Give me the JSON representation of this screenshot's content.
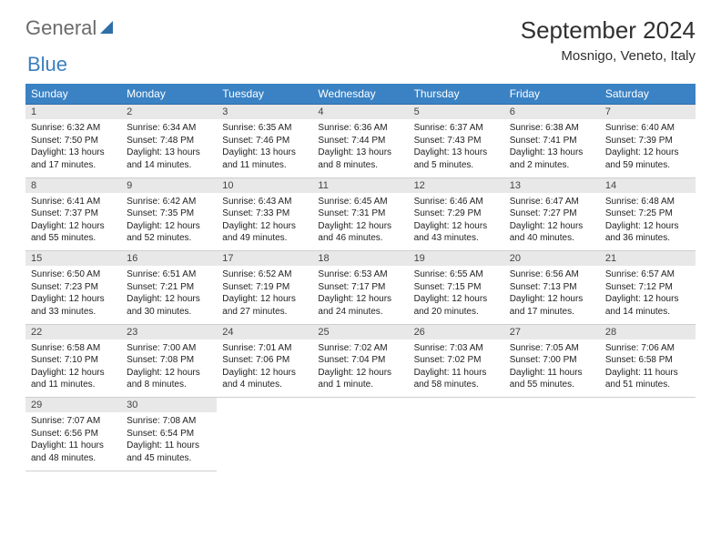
{
  "brand": {
    "word1": "General",
    "word2": "Blue"
  },
  "title": "September 2024",
  "location": "Mosnigo, Veneto, Italy",
  "colors": {
    "header_bg": "#3a82c4",
    "header_border": "#2a6aa5",
    "daynum_bg": "#e8e8e8",
    "text": "#222222",
    "brand_gray": "#6b6b6b",
    "brand_blue": "#3a7fbf"
  },
  "weekdays": [
    "Sunday",
    "Monday",
    "Tuesday",
    "Wednesday",
    "Thursday",
    "Friday",
    "Saturday"
  ],
  "weeks": [
    [
      {
        "n": "1",
        "sunrise": "6:32 AM",
        "sunset": "7:50 PM",
        "daylight": "13 hours and 17 minutes."
      },
      {
        "n": "2",
        "sunrise": "6:34 AM",
        "sunset": "7:48 PM",
        "daylight": "13 hours and 14 minutes."
      },
      {
        "n": "3",
        "sunrise": "6:35 AM",
        "sunset": "7:46 PM",
        "daylight": "13 hours and 11 minutes."
      },
      {
        "n": "4",
        "sunrise": "6:36 AM",
        "sunset": "7:44 PM",
        "daylight": "13 hours and 8 minutes."
      },
      {
        "n": "5",
        "sunrise": "6:37 AM",
        "sunset": "7:43 PM",
        "daylight": "13 hours and 5 minutes."
      },
      {
        "n": "6",
        "sunrise": "6:38 AM",
        "sunset": "7:41 PM",
        "daylight": "13 hours and 2 minutes."
      },
      {
        "n": "7",
        "sunrise": "6:40 AM",
        "sunset": "7:39 PM",
        "daylight": "12 hours and 59 minutes."
      }
    ],
    [
      {
        "n": "8",
        "sunrise": "6:41 AM",
        "sunset": "7:37 PM",
        "daylight": "12 hours and 55 minutes."
      },
      {
        "n": "9",
        "sunrise": "6:42 AM",
        "sunset": "7:35 PM",
        "daylight": "12 hours and 52 minutes."
      },
      {
        "n": "10",
        "sunrise": "6:43 AM",
        "sunset": "7:33 PM",
        "daylight": "12 hours and 49 minutes."
      },
      {
        "n": "11",
        "sunrise": "6:45 AM",
        "sunset": "7:31 PM",
        "daylight": "12 hours and 46 minutes."
      },
      {
        "n": "12",
        "sunrise": "6:46 AM",
        "sunset": "7:29 PM",
        "daylight": "12 hours and 43 minutes."
      },
      {
        "n": "13",
        "sunrise": "6:47 AM",
        "sunset": "7:27 PM",
        "daylight": "12 hours and 40 minutes."
      },
      {
        "n": "14",
        "sunrise": "6:48 AM",
        "sunset": "7:25 PM",
        "daylight": "12 hours and 36 minutes."
      }
    ],
    [
      {
        "n": "15",
        "sunrise": "6:50 AM",
        "sunset": "7:23 PM",
        "daylight": "12 hours and 33 minutes."
      },
      {
        "n": "16",
        "sunrise": "6:51 AM",
        "sunset": "7:21 PM",
        "daylight": "12 hours and 30 minutes."
      },
      {
        "n": "17",
        "sunrise": "6:52 AM",
        "sunset": "7:19 PM",
        "daylight": "12 hours and 27 minutes."
      },
      {
        "n": "18",
        "sunrise": "6:53 AM",
        "sunset": "7:17 PM",
        "daylight": "12 hours and 24 minutes."
      },
      {
        "n": "19",
        "sunrise": "6:55 AM",
        "sunset": "7:15 PM",
        "daylight": "12 hours and 20 minutes."
      },
      {
        "n": "20",
        "sunrise": "6:56 AM",
        "sunset": "7:13 PM",
        "daylight": "12 hours and 17 minutes."
      },
      {
        "n": "21",
        "sunrise": "6:57 AM",
        "sunset": "7:12 PM",
        "daylight": "12 hours and 14 minutes."
      }
    ],
    [
      {
        "n": "22",
        "sunrise": "6:58 AM",
        "sunset": "7:10 PM",
        "daylight": "12 hours and 11 minutes."
      },
      {
        "n": "23",
        "sunrise": "7:00 AM",
        "sunset": "7:08 PM",
        "daylight": "12 hours and 8 minutes."
      },
      {
        "n": "24",
        "sunrise": "7:01 AM",
        "sunset": "7:06 PM",
        "daylight": "12 hours and 4 minutes."
      },
      {
        "n": "25",
        "sunrise": "7:02 AM",
        "sunset": "7:04 PM",
        "daylight": "12 hours and 1 minute."
      },
      {
        "n": "26",
        "sunrise": "7:03 AM",
        "sunset": "7:02 PM",
        "daylight": "11 hours and 58 minutes."
      },
      {
        "n": "27",
        "sunrise": "7:05 AM",
        "sunset": "7:00 PM",
        "daylight": "11 hours and 55 minutes."
      },
      {
        "n": "28",
        "sunrise": "7:06 AM",
        "sunset": "6:58 PM",
        "daylight": "11 hours and 51 minutes."
      }
    ],
    [
      {
        "n": "29",
        "sunrise": "7:07 AM",
        "sunset": "6:56 PM",
        "daylight": "11 hours and 48 minutes."
      },
      {
        "n": "30",
        "sunrise": "7:08 AM",
        "sunset": "6:54 PM",
        "daylight": "11 hours and 45 minutes."
      },
      null,
      null,
      null,
      null,
      null
    ]
  ],
  "labels": {
    "sunrise": "Sunrise:",
    "sunset": "Sunset:",
    "daylight": "Daylight:"
  }
}
